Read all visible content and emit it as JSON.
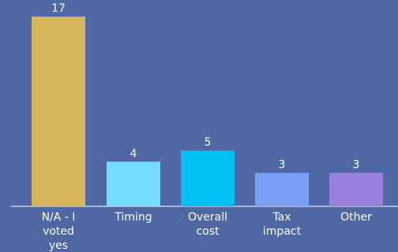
{
  "chart_data": {
    "type": "bar",
    "title": "",
    "xlabel": "",
    "ylabel": "",
    "categories": [
      [
        "N/A - I",
        "voted",
        "yes"
      ],
      [
        "Timing"
      ],
      [
        "Overall",
        "cost"
      ],
      [
        "Tax",
        "impact"
      ],
      [
        "Other"
      ]
    ],
    "values": [
      17,
      4,
      5,
      3,
      3
    ],
    "colors": [
      "#d6b65a",
      "#74dcfc",
      "#00bff2",
      "#7aa0f5",
      "#9a7fdc"
    ],
    "ylim": [
      0,
      17
    ],
    "grid": false,
    "legend": "none"
  },
  "style": {
    "background": "#4f67a5",
    "axis_color": "#c9d2e8",
    "text_color": "#ffffff"
  }
}
